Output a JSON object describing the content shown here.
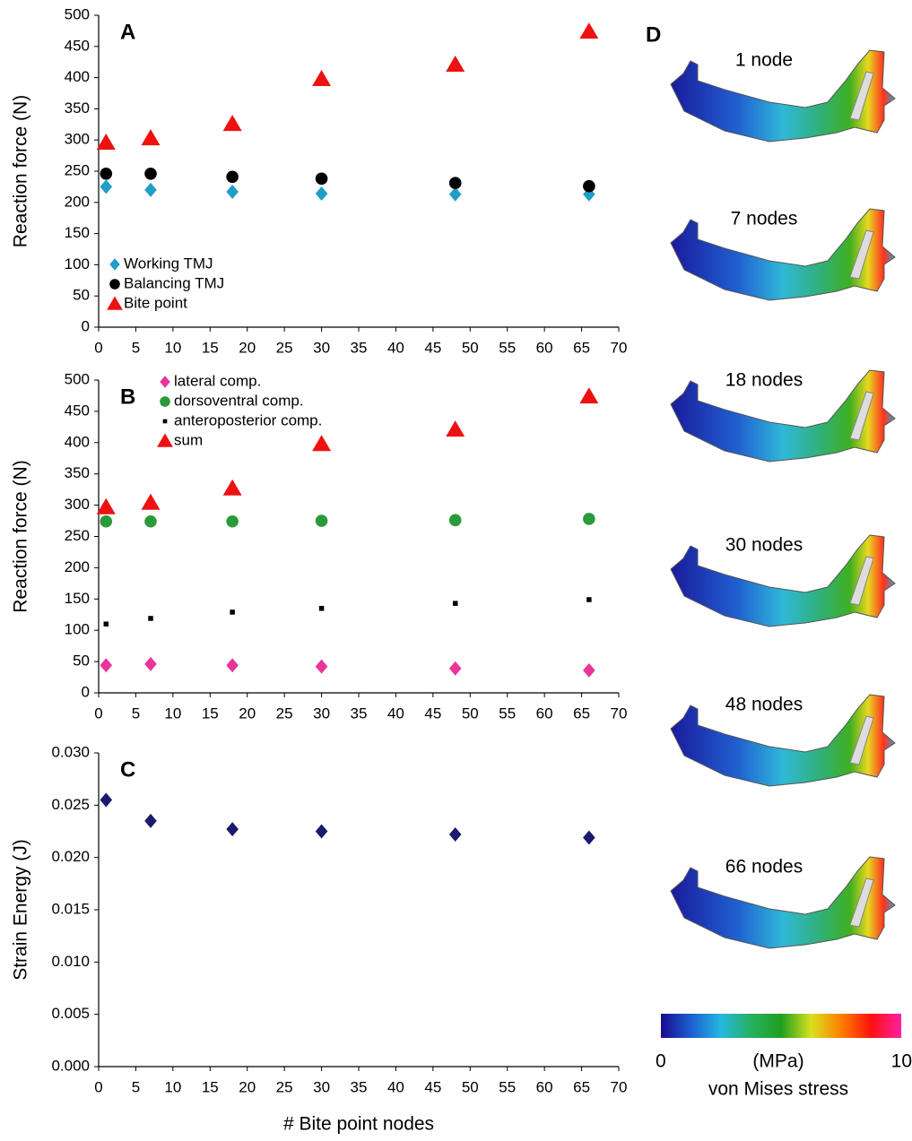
{
  "chart_data": [
    {
      "type": "scatter",
      "panel_label": "A",
      "y_label": "Reaction force (N)",
      "x": [
        1,
        7,
        18,
        30,
        48,
        66
      ],
      "xlim": [
        0,
        70
      ],
      "xticks": [
        0,
        5,
        10,
        15,
        20,
        25,
        30,
        35,
        40,
        45,
        50,
        55,
        60,
        65,
        70
      ],
      "ylim": [
        0,
        500
      ],
      "yticks": [
        0,
        50,
        100,
        150,
        200,
        250,
        300,
        350,
        400,
        450,
        500
      ],
      "grid": false,
      "legend": "lower left",
      "series": [
        {
          "name": "Working TMJ",
          "color": "#1f9fc8",
          "marker": "diamond",
          "values": [
            225,
            220,
            217,
            214,
            213,
            213
          ]
        },
        {
          "name": "Balancing TMJ",
          "color": "#000000",
          "marker": "circle",
          "values": [
            246,
            246,
            241,
            238,
            231,
            226
          ]
        },
        {
          "name": "Bite point",
          "color": "#ee1111",
          "marker": "triangle",
          "values": [
            296,
            303,
            326,
            398,
            421,
            474
          ]
        }
      ]
    },
    {
      "type": "scatter",
      "panel_label": "B",
      "y_label": "Reaction force (N)",
      "x": [
        1,
        7,
        18,
        30,
        48,
        66
      ],
      "xlim": [
        0,
        70
      ],
      "xticks": [
        0,
        5,
        10,
        15,
        20,
        25,
        30,
        35,
        40,
        45,
        50,
        55,
        60,
        65,
        70
      ],
      "ylim": [
        0,
        500
      ],
      "yticks": [
        0,
        50,
        100,
        150,
        200,
        250,
        300,
        350,
        400,
        450,
        500
      ],
      "grid": false,
      "legend": "upper left",
      "series": [
        {
          "name": "lateral comp.",
          "color": "#e8359a",
          "marker": "diamond",
          "values": [
            44,
            46,
            44,
            42,
            39,
            36
          ]
        },
        {
          "name": "dorsoventral comp.",
          "color": "#2a9a3a",
          "marker": "circle",
          "values": [
            274,
            274,
            274,
            275,
            276,
            278
          ]
        },
        {
          "name": "anteroposterior comp.",
          "color": "#000000",
          "marker": "square",
          "values": [
            110,
            119,
            129,
            135,
            143,
            149
          ]
        },
        {
          "name": "sum",
          "color": "#ee1111",
          "marker": "triangle",
          "values": [
            297,
            304,
            327,
            398,
            421,
            474
          ]
        }
      ]
    },
    {
      "type": "scatter",
      "panel_label": "C",
      "y_label": "Strain Energy (J)",
      "x_label": "# Bite point nodes",
      "x": [
        1,
        7,
        18,
        30,
        48,
        66
      ],
      "xlim": [
        0,
        70
      ],
      "xticks": [
        0,
        5,
        10,
        15,
        20,
        25,
        30,
        35,
        40,
        45,
        50,
        55,
        60,
        65,
        70
      ],
      "ylim": [
        0,
        0.03
      ],
      "yticks": [
        {
          "value": 0,
          "label": "0.000"
        },
        {
          "value": 0.005,
          "label": "0.005"
        },
        {
          "value": 0.01,
          "label": "0.010"
        },
        {
          "value": 0.015,
          "label": "0.015"
        },
        {
          "value": 0.02,
          "label": "0.020"
        },
        {
          "value": 0.025,
          "label": "0.025"
        },
        {
          "value": 0.03,
          "label": "0.030"
        }
      ],
      "grid": false,
      "series": [
        {
          "name": null,
          "color": "#1a1a6e",
          "marker": "diamond",
          "values": [
            0.0255,
            0.0235,
            0.0227,
            0.0225,
            0.0222,
            0.0219
          ]
        }
      ]
    }
  ],
  "image_panel": {
    "panel_label": "D",
    "images": [
      "1 node",
      "7 nodes",
      "18 nodes",
      "30 nodes",
      "48 nodes",
      "66 nodes"
    ],
    "colorbar": {
      "lim": [
        0,
        10
      ],
      "ticks": [
        0,
        10
      ],
      "unit": "(MPa)",
      "title": "von Mises stress",
      "colors": [
        "#1a0a8c",
        "#1b5fd0",
        "#25b8e0",
        "#27b060",
        "#1fa020",
        "#d8e020",
        "#ff8000",
        "#ff1010",
        "#ff20a0"
      ]
    }
  }
}
